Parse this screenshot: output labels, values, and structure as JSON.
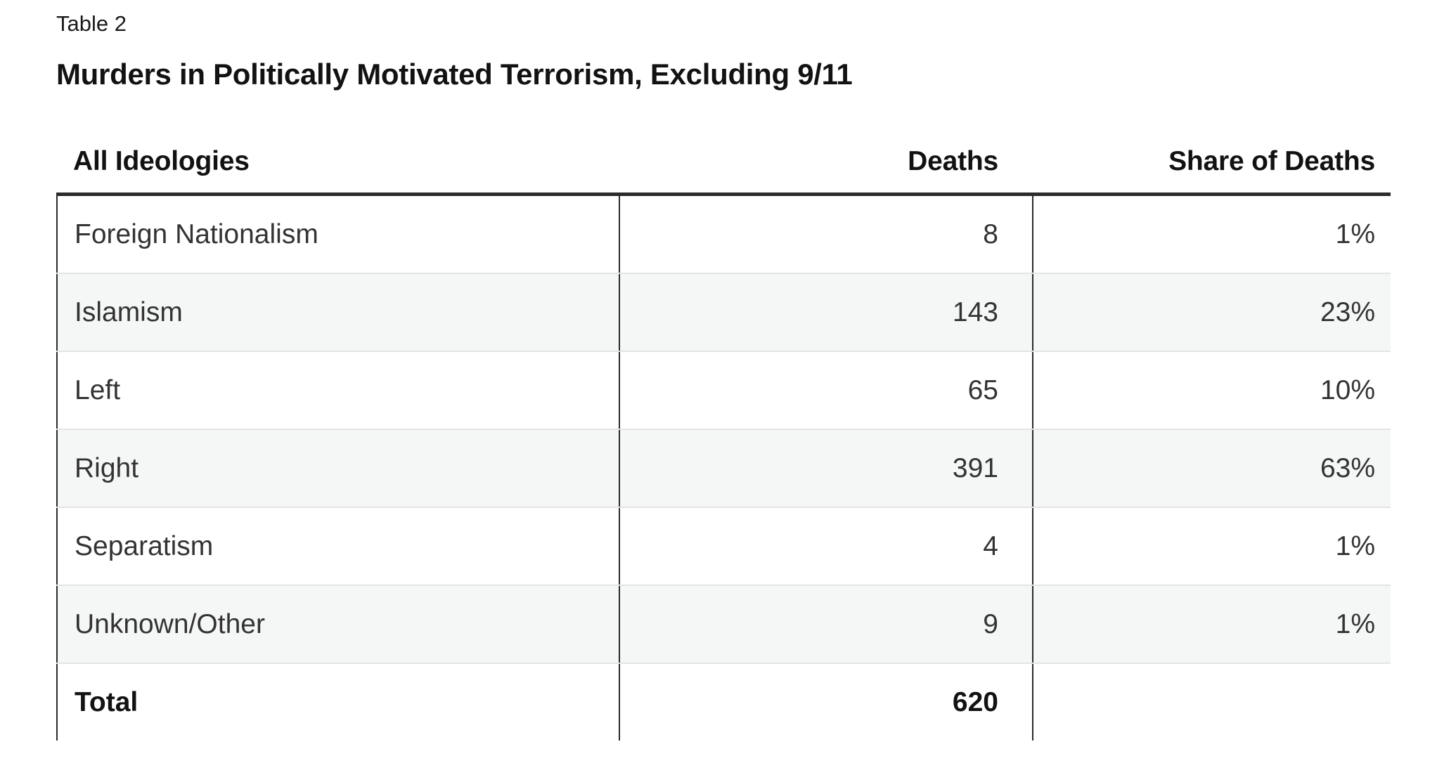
{
  "table_label": "Table 2",
  "title": "Murders in Politically Motivated Terrorism, Excluding 9/11",
  "chart_data": {
    "type": "table",
    "title": "Murders in Politically Motivated Terrorism, Excluding 9/11",
    "columns": [
      "All Ideologies",
      "Deaths",
      "Share of Deaths"
    ],
    "rows": [
      [
        "Foreign Nationalism",
        "8",
        "1%"
      ],
      [
        "Islamism",
        "143",
        "23%"
      ],
      [
        "Left",
        "65",
        "10%"
      ],
      [
        "Right",
        "391",
        "63%"
      ],
      [
        "Separatism",
        "4",
        "1%"
      ],
      [
        "Unknown/Other",
        "9",
        "1%"
      ]
    ],
    "total": [
      "Total",
      "620",
      ""
    ],
    "layout": {
      "zebra_striping": true,
      "striped_rows": [
        1,
        3,
        5
      ],
      "column_alignment": [
        "left",
        "right",
        "right"
      ],
      "header_rule": "thick-dark",
      "column_rules": true,
      "bottom_rule": false
    }
  },
  "colors": {
    "background": "#ffffff",
    "heading_text": "#121212",
    "body_text": "#333333",
    "zebra_background": "#f5f6f6",
    "header_rule": "#2b2b2b",
    "column_rule": "#2b2b2b",
    "row_rule": "#e4e4e4"
  }
}
